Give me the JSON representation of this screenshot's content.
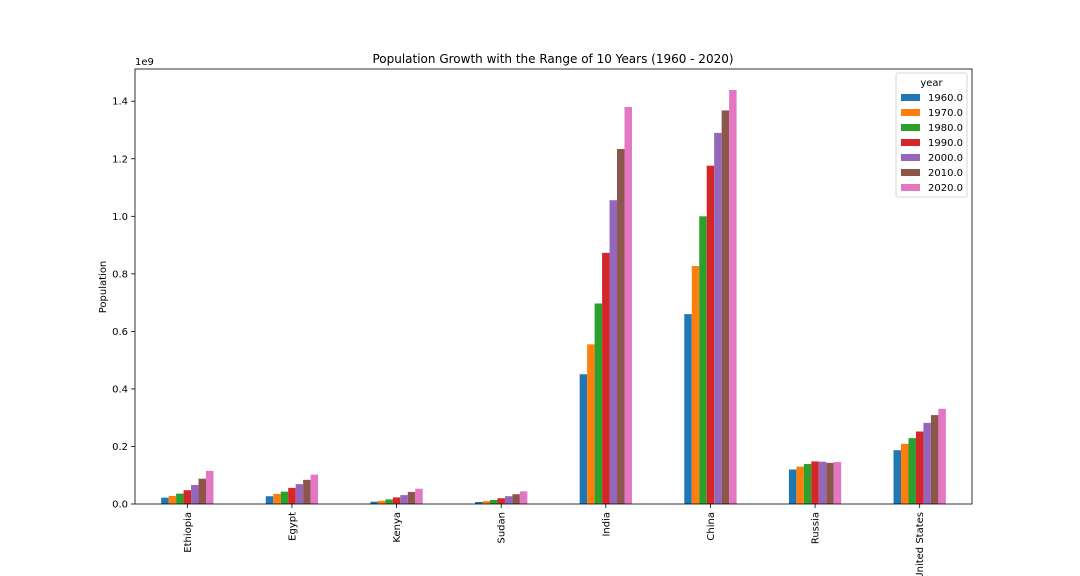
{
  "chart_data": {
    "type": "bar",
    "title": "Population Growth with the Range of 10 Years (1960 - 2020)",
    "xlabel": "",
    "ylabel": "Population",
    "y_scale_label": "1e9",
    "ylim": [
      0,
      1.512
    ],
    "yticks": [
      0.0,
      0.2,
      0.4,
      0.6,
      0.8,
      1.0,
      1.2,
      1.4
    ],
    "ytick_labels": [
      "0.0",
      "0.2",
      "0.4",
      "0.6",
      "0.8",
      "1.0",
      "1.2",
      "1.4"
    ],
    "grid": false,
    "legend": {
      "title": "year",
      "position": "top-right"
    },
    "categories": [
      "Ethiopia",
      "Egypt",
      "Kenya",
      "Sudan",
      "India",
      "China",
      "Russia",
      "United States"
    ],
    "series": [
      {
        "name": "1960.0",
        "color": "#1f77b4",
        "values": [
          0.022,
          0.027,
          0.008,
          0.007,
          0.451,
          0.66,
          0.12,
          0.187
        ]
      },
      {
        "name": "1970.0",
        "color": "#ff7f0e",
        "values": [
          0.028,
          0.035,
          0.011,
          0.01,
          0.555,
          0.827,
          0.13,
          0.209
        ]
      },
      {
        "name": "1980.0",
        "color": "#2ca02c",
        "values": [
          0.036,
          0.043,
          0.016,
          0.014,
          0.697,
          1.0,
          0.139,
          0.229
        ]
      },
      {
        "name": "1990.0",
        "color": "#d62728",
        "values": [
          0.048,
          0.056,
          0.023,
          0.02,
          0.873,
          1.176,
          0.148,
          0.252
        ]
      },
      {
        "name": "2000.0",
        "color": "#9467bd",
        "values": [
          0.066,
          0.069,
          0.031,
          0.027,
          1.056,
          1.29,
          0.147,
          0.282
        ]
      },
      {
        "name": "2010.0",
        "color": "#8c564b",
        "values": [
          0.088,
          0.084,
          0.042,
          0.034,
          1.234,
          1.368,
          0.143,
          0.309
        ]
      },
      {
        "name": "2020.0",
        "color": "#e377c2",
        "values": [
          0.115,
          0.102,
          0.053,
          0.044,
          1.38,
          1.439,
          0.146,
          0.331
        ]
      }
    ]
  }
}
